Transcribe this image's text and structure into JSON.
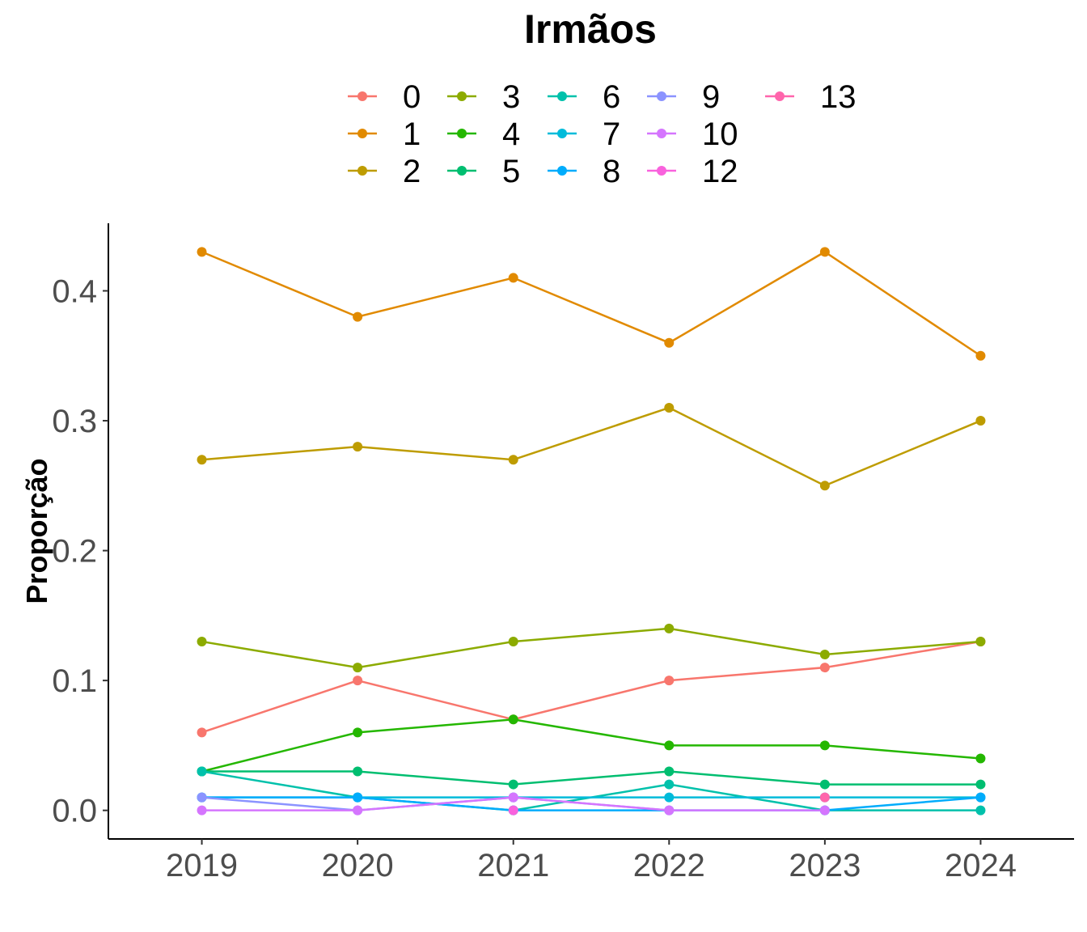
{
  "chart_data": {
    "type": "line",
    "legend_title": "Irmãos",
    "legend_position": "top",
    "xlabel": "",
    "ylabel": "Proporção",
    "x": [
      2019,
      2020,
      2021,
      2022,
      2023,
      2024
    ],
    "xlim": [
      2018.4,
      2024.6
    ],
    "ylim": [
      -0.022,
      0.452
    ],
    "yticks": [
      0.0,
      0.1,
      0.2,
      0.3,
      0.4
    ],
    "ytick_labels": [
      "0.0",
      "0.1",
      "0.2",
      "0.3",
      "0.4"
    ],
    "grid": false,
    "series": [
      {
        "name": "0",
        "color": "#F8766D",
        "values": [
          0.06,
          0.1,
          0.07,
          0.1,
          0.11,
          0.13
        ]
      },
      {
        "name": "1",
        "color": "#E18A00",
        "values": [
          0.43,
          0.38,
          0.41,
          0.36,
          0.43,
          0.35
        ]
      },
      {
        "name": "2",
        "color": "#BE9C00",
        "values": [
          0.27,
          0.28,
          0.27,
          0.31,
          0.25,
          0.3
        ]
      },
      {
        "name": "3",
        "color": "#8CAB00",
        "values": [
          0.13,
          0.11,
          0.13,
          0.14,
          0.12,
          0.13
        ]
      },
      {
        "name": "4",
        "color": "#24B700",
        "values": [
          0.03,
          0.06,
          0.07,
          0.05,
          0.05,
          0.04
        ]
      },
      {
        "name": "5",
        "color": "#00BE70",
        "values": [
          0.03,
          0.03,
          0.02,
          0.03,
          0.02,
          0.02
        ]
      },
      {
        "name": "6",
        "color": "#00C1AB",
        "values": [
          0.03,
          0.01,
          0.0,
          0.02,
          0.0,
          0.0
        ]
      },
      {
        "name": "7",
        "color": "#00BBDA",
        "values": [
          0.01,
          0.01,
          0.01,
          0.01,
          0.01,
          0.01
        ]
      },
      {
        "name": "8",
        "color": "#00ACFC",
        "values": [
          0.01,
          0.01,
          0.0,
          0.0,
          0.0,
          0.01
        ]
      },
      {
        "name": "9",
        "color": "#8B93FF",
        "values": [
          0.01,
          0.0,
          0.01,
          0.0,
          null,
          null
        ]
      },
      {
        "name": "10",
        "color": "#D575FE",
        "values": [
          0.0,
          0.0,
          0.01,
          0.0,
          0.0,
          null
        ]
      },
      {
        "name": "12",
        "color": "#F962DD",
        "values": [
          null,
          null,
          0.0,
          null,
          null,
          null
        ]
      },
      {
        "name": "13",
        "color": "#FF65AC",
        "values": [
          null,
          null,
          null,
          null,
          0.01,
          null
        ]
      }
    ]
  }
}
